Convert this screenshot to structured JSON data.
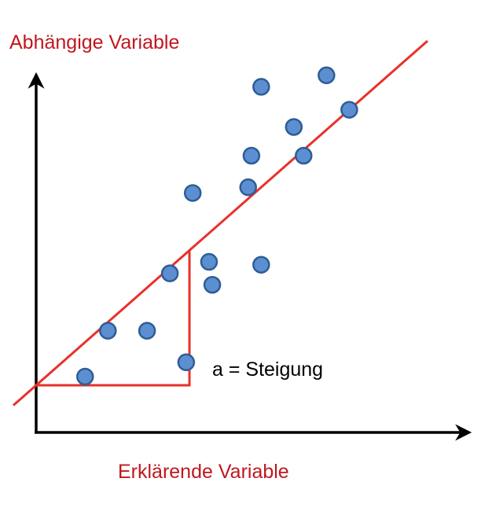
{
  "chart_data": {
    "type": "scatter",
    "title": "",
    "ylabel": "Abhängige Variable",
    "xlabel": "Erklärende Variable",
    "annotation": "a = Steigung",
    "grid": false,
    "colors": {
      "axis_label": "#c0171f",
      "regression_line": "#e8312a",
      "slope_triangle": "#e8312a",
      "point_fill": "#5b8fd1",
      "point_stroke": "#2e5d94",
      "axis": "#000000"
    },
    "points": [
      {
        "x": 1.5,
        "y": 0.3
      },
      {
        "x": 2.2,
        "y": 1.9
      },
      {
        "x": 3.4,
        "y": 1.9
      },
      {
        "x": 4.1,
        "y": 3.9
      },
      {
        "x": 4.6,
        "y": 0.8
      },
      {
        "x": 4.8,
        "y": 6.7
      },
      {
        "x": 5.3,
        "y": 4.3
      },
      {
        "x": 5.4,
        "y": 3.5
      },
      {
        "x": 6.5,
        "y": 6.9
      },
      {
        "x": 6.6,
        "y": 8.0
      },
      {
        "x": 6.9,
        "y": 10.4
      },
      {
        "x": 6.9,
        "y": 4.2
      },
      {
        "x": 7.9,
        "y": 9.0
      },
      {
        "x": 8.2,
        "y": 8.0
      },
      {
        "x": 8.9,
        "y": 10.8
      },
      {
        "x": 9.6,
        "y": 9.6
      }
    ],
    "regression_line": {
      "x0": -0.7,
      "y0": -0.7,
      "x1": 12.0,
      "y1": 12.0
    },
    "slope_triangle": {
      "x0": 0.0,
      "x1": 4.7
    }
  }
}
